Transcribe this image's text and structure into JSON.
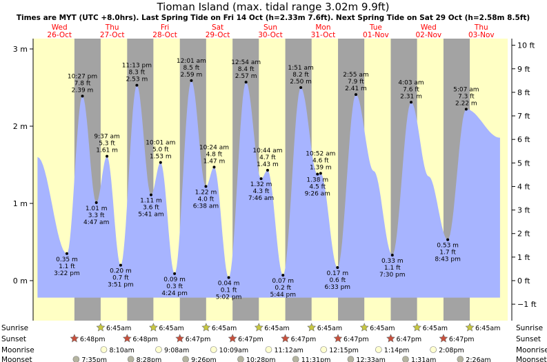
{
  "title": "Tioman Island (max. tidal range 3.02m 9.9ft)",
  "subtitle": "Times are MYT (UTC +8.0hrs). Last Spring Tide on Fri 14 Oct (h=2.33m 7.6ft). Next Spring Tide on Sat 29 Oct (h=2.58m 8.5ft)",
  "colors": {
    "day": "#ffffc4",
    "night": "#a3a3a3",
    "tide_fill": "#a7b4ff",
    "day_label": "#ff0000",
    "sunrise": "#c8c840",
    "sunset": "#c8503c",
    "moonrise": "#ffffd0",
    "moonset": "#b4b4a0"
  },
  "days": [
    {
      "name": "Wed",
      "date": "26-Oct"
    },
    {
      "name": "Thu",
      "date": "27-Oct"
    },
    {
      "name": "Fri",
      "date": "28-Oct"
    },
    {
      "name": "Sat",
      "date": "29-Oct"
    },
    {
      "name": "Sun",
      "date": "30-Oct"
    },
    {
      "name": "Mon",
      "date": "31-Oct"
    },
    {
      "name": "Tue",
      "date": "01-Nov"
    },
    {
      "name": "Wed",
      "date": "02-Nov"
    },
    {
      "name": "Thu",
      "date": "03-Nov"
    }
  ],
  "chart_data": {
    "type": "area",
    "xlabel": "",
    "ylabel": "",
    "ylim_m": [
      -0.25,
      3.1
    ],
    "left_axis_ticks": [
      "3 m",
      "2 m",
      "1 m",
      "0 m"
    ],
    "left_axis_values": [
      3,
      2,
      1,
      0
    ],
    "right_axis_ticks": [
      "10 ft",
      "9 ft",
      "8 ft",
      "7 ft",
      "6 ft",
      "5 ft",
      "4 ft",
      "3 ft",
      "2 ft",
      "1 ft",
      "0 ft",
      "−1 ft"
    ],
    "right_axis_values_ft": [
      10,
      9,
      8,
      7,
      6,
      5,
      4,
      3,
      2,
      1,
      0,
      -1
    ],
    "day_boundaries_hours": [
      0,
      24,
      48,
      72,
      96,
      120,
      144,
      168,
      192
    ],
    "night_bands_hours": [
      [
        18.8,
        30.75
      ],
      [
        42.8,
        54.75
      ],
      [
        66.78,
        78.75
      ],
      [
        90.78,
        102.75
      ],
      [
        114.78,
        126.75
      ],
      [
        138.78,
        150.75
      ],
      [
        162.78,
        174.75
      ],
      [
        186.78,
        198.75
      ]
    ],
    "series_start": {
      "hour": 2.0,
      "m": 1.6
    },
    "series_end": {
      "hour": 212.5,
      "m": 1.85
    },
    "extremes": [
      {
        "hour": 15.37,
        "m": 0.35,
        "m_label": "0.35 m",
        "ft_label": "1.1 ft",
        "time": "3:22 pm",
        "type": "low"
      },
      {
        "hour": 22.45,
        "m": 2.39,
        "m_label": "2.39 m",
        "ft_label": "7.8 ft",
        "time": "10:27 pm",
        "type": "high"
      },
      {
        "hour": 28.78,
        "m": 1.01,
        "m_label": "1.01 m",
        "ft_label": "3.3 ft",
        "time": "4:47 am",
        "type": "low"
      },
      {
        "hour": 33.62,
        "m": 1.61,
        "m_label": "1.61 m",
        "ft_label": "5.3 ft",
        "time": "9:37 am",
        "type": "high"
      },
      {
        "hour": 39.85,
        "m": 0.2,
        "m_label": "0.20 m",
        "ft_label": "0.7 ft",
        "time": "3:51 pm",
        "type": "low"
      },
      {
        "hour": 47.22,
        "m": 2.53,
        "m_label": "2.53 m",
        "ft_label": "8.3 ft",
        "time": "11:13 pm",
        "type": "high"
      },
      {
        "hour": 53.68,
        "m": 1.11,
        "m_label": "1.11 m",
        "ft_label": "3.6 ft",
        "time": "5:41 am",
        "type": "low"
      },
      {
        "hour": 58.02,
        "m": 1.53,
        "m_label": "1.53 m",
        "ft_label": "5.0 ft",
        "time": "10:01 am",
        "type": "high"
      },
      {
        "hour": 64.4,
        "m": 0.09,
        "m_label": "0.09 m",
        "ft_label": "0.3 ft",
        "time": "4:24 pm",
        "type": "low"
      },
      {
        "hour": 72.02,
        "m": 2.59,
        "m_label": "2.59 m",
        "ft_label": "8.5 ft",
        "time": "12:01 am",
        "type": "high"
      },
      {
        "hour": 78.63,
        "m": 1.22,
        "m_label": "1.22 m",
        "ft_label": "4.0 ft",
        "time": "6:38 am",
        "type": "low"
      },
      {
        "hour": 82.4,
        "m": 1.47,
        "m_label": "1.47 m",
        "ft_label": "4.8 ft",
        "time": "10:24 am",
        "type": "high"
      },
      {
        "hour": 89.03,
        "m": 0.04,
        "m_label": "0.04 m",
        "ft_label": "0.1 ft",
        "time": "5:02 pm",
        "type": "low"
      },
      {
        "hour": 96.9,
        "m": 2.57,
        "m_label": "2.57 m",
        "ft_label": "8.4 ft",
        "time": "12:54 am",
        "type": "high"
      },
      {
        "hour": 103.77,
        "m": 1.32,
        "m_label": "1.32 m",
        "ft_label": "4.3 ft",
        "time": "7:46 am",
        "type": "low"
      },
      {
        "hour": 106.73,
        "m": 1.43,
        "m_label": "1.43 m",
        "ft_label": "4.7 ft",
        "time": "10:44 am",
        "type": "high"
      },
      {
        "hour": 113.73,
        "m": 0.07,
        "m_label": "0.07 m",
        "ft_label": "0.2 ft",
        "time": "5:44 pm",
        "type": "low"
      },
      {
        "hour": 121.85,
        "m": 2.5,
        "m_label": "2.50 m",
        "ft_label": "8.2 ft",
        "time": "1:51 am",
        "type": "high"
      },
      {
        "hour": 129.43,
        "m": 1.38,
        "m_label": "1.38 m",
        "ft_label": "4.5 ft",
        "time": "9:26 am",
        "type": "low"
      },
      {
        "hour": 130.87,
        "m": 1.39,
        "m_label": "1.39 m",
        "ft_label": "4.6 ft",
        "time": "10:52 am",
        "type": "high"
      },
      {
        "hour": 138.55,
        "m": 0.17,
        "m_label": "0.17 m",
        "ft_label": "0.6 ft",
        "time": "6:33 pm",
        "type": "low"
      },
      {
        "hour": 146.92,
        "m": 2.41,
        "m_label": "2.41 m",
        "ft_label": "7.9 ft",
        "time": "2:55 am",
        "type": "high"
      },
      {
        "hour": 163.5,
        "m": 0.33,
        "m_label": "0.33 m",
        "ft_label": "1.1 ft",
        "time": "7:30 pm",
        "type": "low"
      },
      {
        "hour": 172.05,
        "m": 2.31,
        "m_label": "2.31 m",
        "ft_label": "7.6 ft",
        "time": "4:03 am",
        "type": "high"
      },
      {
        "hour": 188.72,
        "m": 0.53,
        "m_label": "0.53 m",
        "ft_label": "1.7 ft",
        "time": "8:43 pm",
        "type": "low"
      },
      {
        "hour": 197.12,
        "m": 2.22,
        "m_label": "2.22 m",
        "ft_label": "7.3 ft",
        "time": "5:07 am",
        "type": "high"
      }
    ],
    "shoulders": [
      {
        "hour": 155.0,
        "m": 1.42
      },
      {
        "hour": 180.0,
        "m": 1.35
      }
    ]
  },
  "astro_rows": [
    {
      "label": "Sunrise",
      "label_right": "Sunrise",
      "kind": "sunrise",
      "events": [
        {
          "hour": 30.75,
          "time": "6:45am"
        },
        {
          "hour": 54.75,
          "time": "6:45am"
        },
        {
          "hour": 78.75,
          "time": "6:45am"
        },
        {
          "hour": 102.75,
          "time": "6:45am"
        },
        {
          "hour": 126.75,
          "time": "6:45am"
        },
        {
          "hour": 150.75,
          "time": "6:45am"
        },
        {
          "hour": 174.75,
          "time": "6:45am"
        },
        {
          "hour": 198.75,
          "time": "6:45am"
        }
      ]
    },
    {
      "label": "Sunset",
      "label_right": "Sunset",
      "kind": "sunset",
      "events": [
        {
          "hour": 18.8,
          "time": "6:48pm"
        },
        {
          "hour": 42.8,
          "time": "6:48pm"
        },
        {
          "hour": 66.78,
          "time": "6:47pm"
        },
        {
          "hour": 90.78,
          "time": "6:47pm"
        },
        {
          "hour": 114.78,
          "time": "6:47pm"
        },
        {
          "hour": 138.78,
          "time": "6:47pm"
        },
        {
          "hour": 162.78,
          "time": "6:47pm"
        },
        {
          "hour": 186.78,
          "time": "6:47pm"
        }
      ]
    },
    {
      "label": "Moonrise",
      "label_right": "Moonrise",
      "kind": "moonrise",
      "events": [
        {
          "hour": 32.17,
          "time": "8:10am"
        },
        {
          "hour": 57.13,
          "time": "9:08am"
        },
        {
          "hour": 82.15,
          "time": "10:09am"
        },
        {
          "hour": 107.2,
          "time": "11:12am"
        },
        {
          "hour": 132.25,
          "time": "12:15pm"
        },
        {
          "hour": 157.23,
          "time": "1:14pm"
        },
        {
          "hour": 182.13,
          "time": "2:08pm"
        }
      ]
    },
    {
      "label": "Moonset",
      "label_right": "Moonset",
      "kind": "moonset",
      "events": [
        {
          "hour": 19.58,
          "time": "7:35pm"
        },
        {
          "hour": 44.47,
          "time": "8:28pm"
        },
        {
          "hour": 69.43,
          "time": "9:26pm"
        },
        {
          "hour": 94.47,
          "time": "10:28pm"
        },
        {
          "hour": 119.52,
          "time": "11:31pm"
        },
        {
          "hour": 144.55,
          "time": "12:33am"
        },
        {
          "hour": 169.52,
          "time": "1:31am"
        },
        {
          "hour": 194.43,
          "time": "2:26am"
        }
      ]
    }
  ]
}
